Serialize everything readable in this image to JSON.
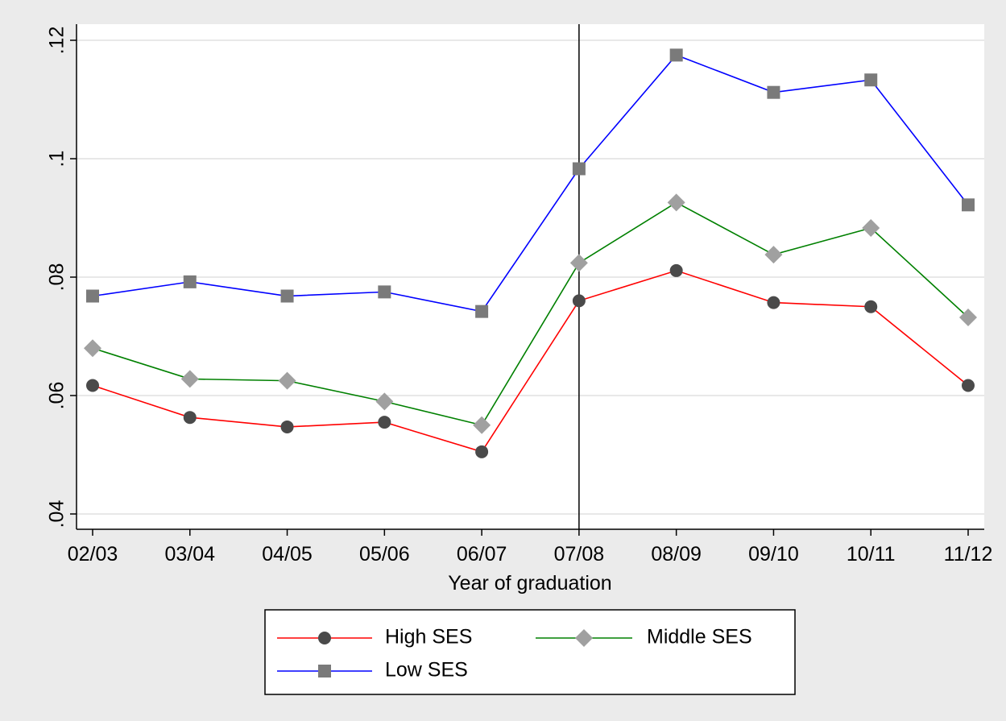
{
  "chart_data": {
    "type": "line",
    "title": "",
    "xlabel": "Year of graduation",
    "ylabel": "",
    "categories": [
      "02/03",
      "03/04",
      "04/05",
      "05/06",
      "06/07",
      "07/08",
      "08/09",
      "09/10",
      "10/11",
      "11/12"
    ],
    "ylim": [
      0.04,
      0.12
    ],
    "y_ticks": [
      {
        "value": 0.04,
        "label": ".04"
      },
      {
        "value": 0.06,
        "label": ".06"
      },
      {
        "value": 0.08,
        "label": ".08"
      },
      {
        "value": 0.1,
        "label": ".1"
      },
      {
        "value": 0.12,
        "label": ".12"
      }
    ],
    "grid": true,
    "reference_line_x": "07/08",
    "legend_position": "bottom",
    "series": [
      {
        "name": "High SES",
        "color": "#ff0000",
        "marker": "circle",
        "marker_color": "#4a4a4a",
        "values": [
          0.0617,
          0.0563,
          0.0547,
          0.0555,
          0.0505,
          0.076,
          0.0811,
          0.0757,
          0.075,
          0.0617
        ]
      },
      {
        "name": "Middle SES",
        "color": "#008000",
        "marker": "diamond",
        "marker_color": "#a0a0a0",
        "values": [
          0.068,
          0.0628,
          0.0625,
          0.059,
          0.055,
          0.0824,
          0.0926,
          0.0838,
          0.0883,
          0.0732
        ]
      },
      {
        "name": "Low SES",
        "color": "#0000ff",
        "marker": "square",
        "marker_color": "#7a7a7a",
        "values": [
          0.0768,
          0.0792,
          0.0768,
          0.0775,
          0.0742,
          0.0983,
          0.1175,
          0.1112,
          0.1133,
          0.0922
        ]
      }
    ]
  }
}
